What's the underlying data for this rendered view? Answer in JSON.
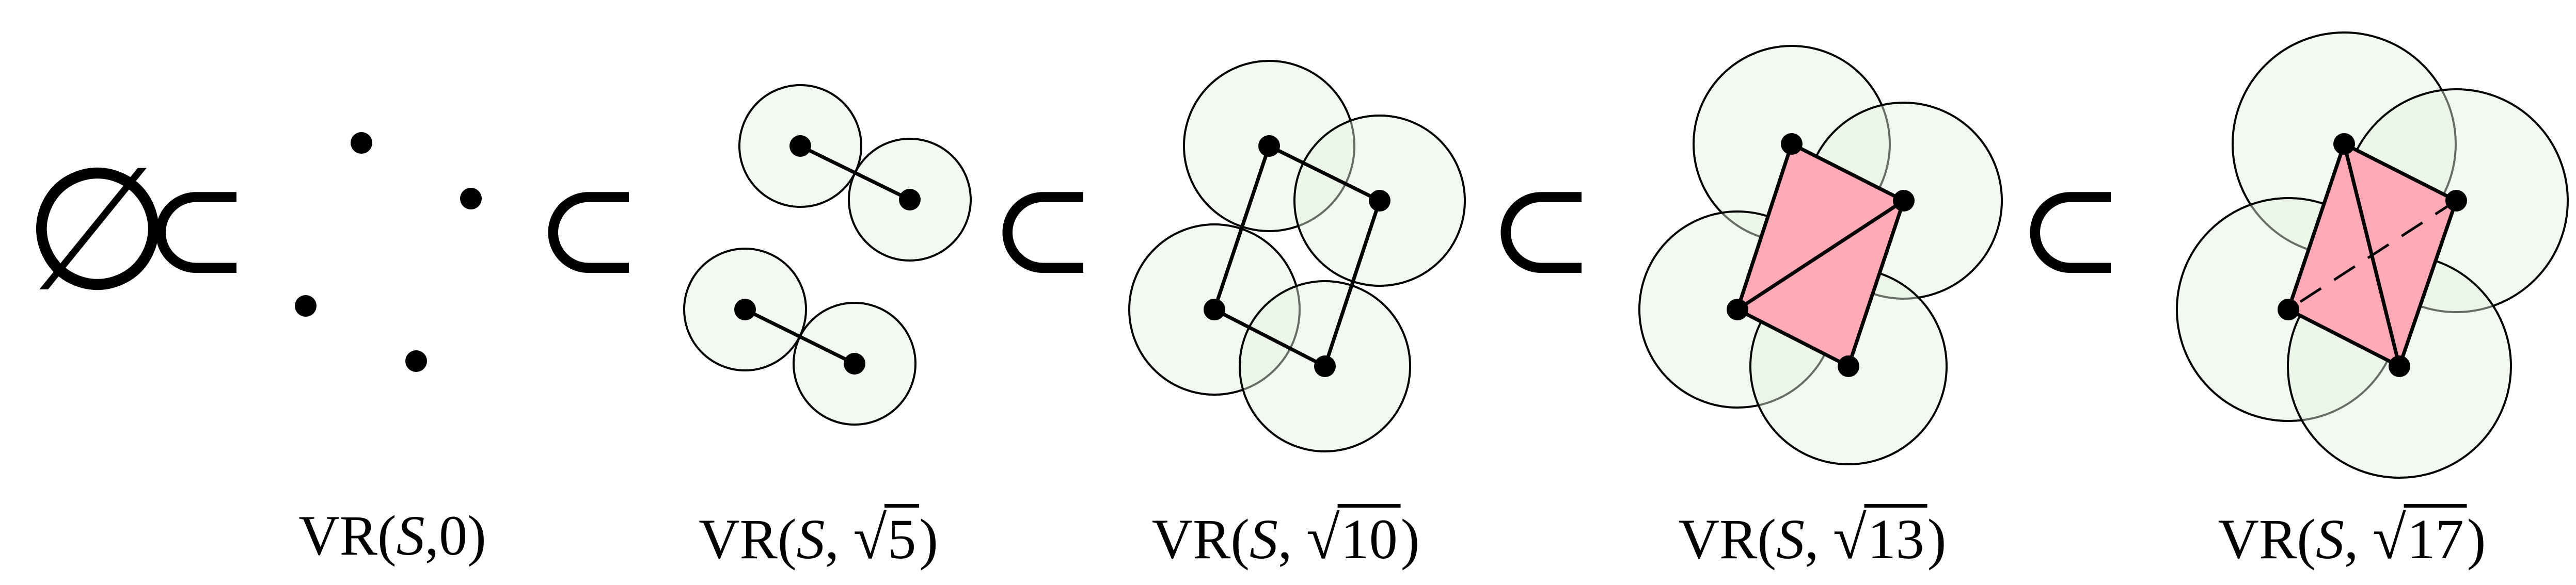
{
  "empty_set_symbol": "∅",
  "subset_symbol": "⊂",
  "colors": {
    "ball_fill": "#e2f2e0",
    "ball_fill_opacity": 0.45,
    "ball_stroke": "#000000",
    "simplex_fill": "#ffaab4",
    "edge": "#000000",
    "point": "#000000"
  },
  "panels": [
    {
      "caption": {
        "prefix": "VR(",
        "set": "S",
        "sep": ",",
        "radical": "",
        "value": "0",
        "suffix": ")"
      },
      "show_balls": false,
      "edges": [],
      "dashed_edges": [],
      "triangles": []
    },
    {
      "caption": {
        "prefix": "VR(",
        "set": "S",
        "sep": ", ",
        "radical": "√",
        "value": "5",
        "suffix": ")"
      },
      "show_balls": true,
      "edges": [
        [
          0,
          1
        ],
        [
          2,
          3
        ]
      ],
      "dashed_edges": [],
      "triangles": []
    },
    {
      "caption": {
        "prefix": "VR(",
        "set": "S",
        "sep": ", ",
        "radical": "√",
        "value": "10",
        "suffix": ")"
      },
      "show_balls": true,
      "edges": [
        [
          0,
          1
        ],
        [
          2,
          3
        ],
        [
          0,
          2
        ],
        [
          1,
          3
        ]
      ],
      "dashed_edges": [],
      "triangles": []
    },
    {
      "caption": {
        "prefix": "VR(",
        "set": "S",
        "sep": ", ",
        "radical": "√",
        "value": "13",
        "suffix": ")"
      },
      "show_balls": true,
      "edges": [
        [
          0,
          1
        ],
        [
          2,
          3
        ],
        [
          0,
          2
        ],
        [
          1,
          3
        ],
        [
          1,
          2
        ]
      ],
      "dashed_edges": [],
      "triangles": [
        [
          0,
          1,
          2
        ],
        [
          1,
          2,
          3
        ]
      ]
    },
    {
      "caption": {
        "prefix": "VR(",
        "set": "S",
        "sep": ", ",
        "radical": "√",
        "value": "17",
        "suffix": ")"
      },
      "show_balls": true,
      "edges": [
        [
          0,
          1
        ],
        [
          2,
          3
        ],
        [
          0,
          2
        ],
        [
          1,
          3
        ],
        [
          0,
          3
        ]
      ],
      "dashed_edges": [
        [
          1,
          2
        ]
      ],
      "triangles": [
        [
          0,
          1,
          3
        ],
        [
          0,
          2,
          3
        ]
      ]
    }
  ]
}
